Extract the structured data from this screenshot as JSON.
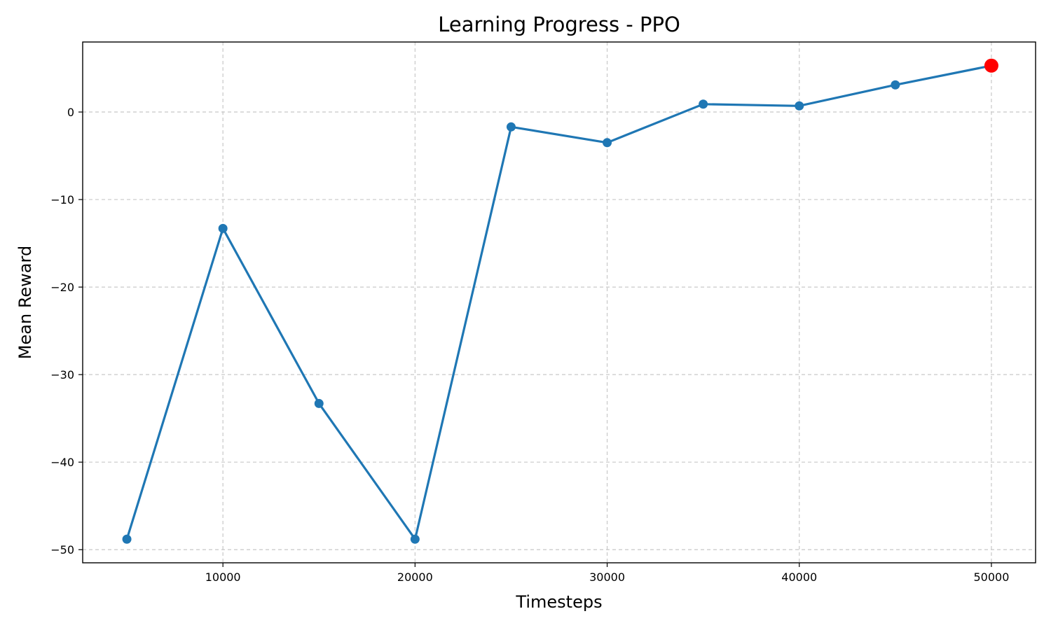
{
  "chart_data": {
    "type": "line",
    "title": "Learning Progress - PPO",
    "xlabel": "Timesteps",
    "ylabel": "Mean Reward",
    "xlim": [
      2700,
      52300
    ],
    "ylim": [
      -51.5,
      8.0
    ],
    "xticks": [
      10000,
      20000,
      30000,
      40000,
      50000
    ],
    "xtick_labels": [
      "10000",
      "20000",
      "30000",
      "40000",
      "50000"
    ],
    "yticks": [
      0,
      -10,
      -20,
      -30,
      -40,
      -50
    ],
    "ytick_labels": [
      "0",
      "−10",
      "−20",
      "−30",
      "−40",
      "−50"
    ],
    "grid": true,
    "series": [
      {
        "color": "#1f77b4",
        "x": [
          5000,
          10000,
          15000,
          20000,
          25000,
          30000,
          35000,
          40000,
          45000,
          50000
        ],
        "y": [
          -48.8,
          -13.3,
          -33.3,
          -48.8,
          -1.7,
          -3.5,
          0.9,
          0.7,
          3.1,
          5.3
        ]
      }
    ],
    "highlight": {
      "x": 50000,
      "y": 5.3,
      "color": "#ff0000"
    }
  }
}
